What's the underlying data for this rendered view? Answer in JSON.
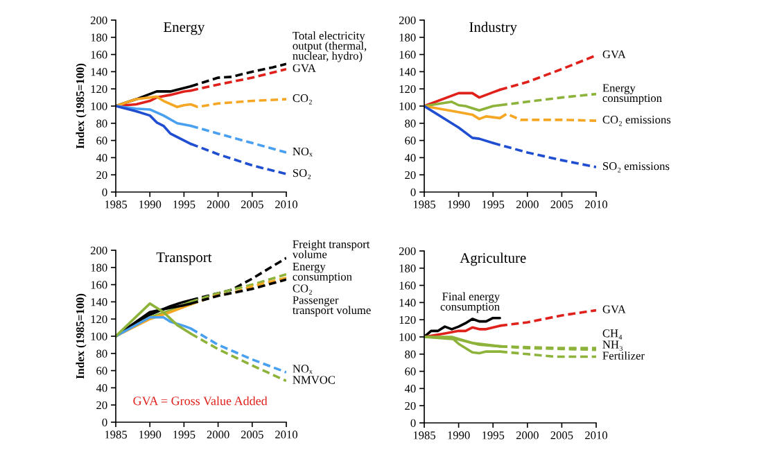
{
  "chart_data": [
    {
      "type": "line",
      "title": "Energy",
      "ylabel": "Index (1985=100)",
      "xlim": [
        1985,
        2010
      ],
      "xticks": [
        1985,
        1990,
        1995,
        2000,
        2005,
        2010
      ],
      "ylim": [
        0,
        200
      ],
      "yticks": [
        0,
        20,
        40,
        60,
        80,
        100,
        120,
        140,
        160,
        180,
        200
      ],
      "grid": false,
      "series": [
        {
          "color": "#000000",
          "line_style": "solid",
          "x": [
            1985,
            1988,
            1990,
            1991,
            1993,
            1995,
            1996
          ],
          "values": [
            100,
            108,
            114,
            117,
            117,
            121,
            123
          ]
        },
        {
          "name": "Total electricity\noutput (thermal,\nnuclear, hydro)",
          "color": "#000000",
          "line_style": "dashed",
          "x": [
            1996,
            2000,
            2002,
            2005,
            2008,
            2010
          ],
          "values": [
            123,
            133,
            134,
            140,
            145,
            149
          ]
        },
        {
          "color": "#e0201b",
          "line_style": "solid",
          "x": [
            1985,
            1988,
            1990,
            1991,
            1993,
            1995,
            1996
          ],
          "values": [
            100,
            102,
            106,
            110,
            113,
            117,
            118
          ]
        },
        {
          "name": "GVA",
          "color": "#e0201b",
          "line_style": "dashed",
          "x": [
            1996,
            2000,
            2005,
            2010
          ],
          "values": [
            118,
            125,
            133,
            143
          ]
        },
        {
          "color": "#f5a623",
          "line_style": "solid",
          "x": [
            1985,
            1988,
            1990,
            1991,
            1992,
            1994,
            1995,
            1996
          ],
          "values": [
            100,
            108,
            110,
            111,
            106,
            99,
            101,
            102
          ]
        },
        {
          "name": "CO₂",
          "color": "#f5a623",
          "line_style": "dashed",
          "x": [
            1996,
            1997,
            2000,
            2005,
            2010
          ],
          "values": [
            102,
            99,
            103,
            106,
            108
          ]
        },
        {
          "color": "#4aa0f0",
          "line_style": "solid",
          "x": [
            1985,
            1988,
            1990,
            1992,
            1994,
            1996
          ],
          "values": [
            100,
            97,
            96,
            89,
            80,
            77
          ]
        },
        {
          "name": "NOₓ",
          "color": "#4aa0f0",
          "line_style": "dashed",
          "x": [
            1996,
            2000,
            2005,
            2010
          ],
          "values": [
            77,
            68,
            57,
            46
          ]
        },
        {
          "color": "#1f4fd0",
          "line_style": "solid",
          "x": [
            1985,
            1988,
            1990,
            1991,
            1992,
            1993,
            1995,
            1996
          ],
          "values": [
            100,
            94,
            89,
            81,
            77,
            68,
            60,
            56
          ]
        },
        {
          "name": "SO₂",
          "color": "#1f4fd0",
          "line_style": "dashed",
          "x": [
            1996,
            2000,
            2005,
            2010
          ],
          "values": [
            56,
            44,
            31,
            21
          ]
        }
      ]
    },
    {
      "type": "line",
      "title": "Industry",
      "xlim": [
        1985,
        2010
      ],
      "xticks": [
        1985,
        1990,
        1995,
        2000,
        2005,
        2010
      ],
      "ylim": [
        0,
        200
      ],
      "yticks": [
        0,
        20,
        40,
        60,
        80,
        100,
        120,
        140,
        160,
        180,
        200
      ],
      "grid": false,
      "series": [
        {
          "color": "#e0201b",
          "line_style": "solid",
          "x": [
            1985,
            1990,
            1992,
            1993,
            1995,
            1996
          ],
          "values": [
            100,
            115,
            115,
            110,
            116,
            119
          ]
        },
        {
          "name": "GVA",
          "color": "#e0201b",
          "line_style": "dashed",
          "x": [
            1996,
            2000,
            2005,
            2010
          ],
          "values": [
            119,
            128,
            143,
            159
          ]
        },
        {
          "color": "#8db33a",
          "line_style": "solid",
          "x": [
            1985,
            1989,
            1990,
            1991,
            1993,
            1995,
            1996
          ],
          "values": [
            100,
            105,
            101,
            100,
            95,
            100,
            101
          ]
        },
        {
          "name": "Energy\nconsumption",
          "color": "#8db33a",
          "line_style": "dashed",
          "x": [
            1996,
            2000,
            2005,
            2010
          ],
          "values": [
            101,
            105,
            110,
            114
          ]
        },
        {
          "color": "#f5a623",
          "line_style": "solid",
          "x": [
            1985,
            1990,
            1992,
            1993,
            1994,
            1996
          ],
          "values": [
            100,
            93,
            90,
            85,
            88,
            86
          ]
        },
        {
          "name": "CO₂ emissions",
          "color": "#f5a623",
          "line_style": "dashed",
          "x": [
            1996,
            1997,
            1999,
            2005,
            2010
          ],
          "values": [
            86,
            91,
            84,
            84,
            83
          ]
        },
        {
          "color": "#1f4fd0",
          "line_style": "solid",
          "x": [
            1985,
            1990,
            1992,
            1993,
            1995
          ],
          "values": [
            100,
            75,
            63,
            62,
            57
          ]
        },
        {
          "name": "SO₂ emissions",
          "color": "#1f4fd0",
          "line_style": "dashed",
          "x": [
            1995,
            2000,
            2005,
            2010
          ],
          "values": [
            57,
            46,
            37,
            29
          ]
        }
      ]
    },
    {
      "type": "line",
      "title": "Transport",
      "ylabel": "Index (1985=100)",
      "xlim": [
        1985,
        2010
      ],
      "xticks": [
        1985,
        1990,
        1995,
        2000,
        2005,
        2010
      ],
      "ylim": [
        0,
        200
      ],
      "yticks": [
        0,
        20,
        40,
        60,
        80,
        100,
        120,
        140,
        160,
        180,
        200
      ],
      "grid": false,
      "annotations": [
        "GVA = Gross Value Added"
      ],
      "series": [
        {
          "color": "#000000",
          "line_style": "solid",
          "x": [
            1985,
            1990,
            1993,
            1995,
            1996
          ],
          "values": [
            100,
            125,
            135,
            140,
            142
          ]
        },
        {
          "name": "Freight transport\nvolume",
          "color": "#000000",
          "line_style": "dashed",
          "x": [
            1996,
            2000,
            2002,
            2005,
            2010
          ],
          "values": [
            142,
            150,
            154,
            167,
            191
          ]
        },
        {
          "color": "#8db33a",
          "line_style": "solid",
          "x": [
            1985,
            1990,
            1993,
            1995,
            1996
          ],
          "values": [
            100,
            122,
            130,
            137,
            140
          ]
        },
        {
          "name": "Energy\nconsumption",
          "color": "#8db33a",
          "line_style": "dashed",
          "x": [
            1996,
            2000,
            2005,
            2010
          ],
          "values": [
            140,
            150,
            160,
            172
          ]
        },
        {
          "color": "#f5a623",
          "line_style": "solid",
          "x": [
            1985,
            1990,
            1993,
            1995,
            1996
          ],
          "values": [
            100,
            120,
            128,
            134,
            137
          ]
        },
        {
          "name": "CO₂",
          "color": "#f5a623",
          "line_style": "dashed",
          "x": [
            1996,
            2000,
            2002,
            2005,
            2010
          ],
          "values": [
            137,
            148,
            150,
            158,
            168
          ]
        },
        {
          "color": "#000000",
          "line_style": "solid",
          "x": [
            1985,
            1990,
            1993,
            1995,
            1996
          ],
          "values": [
            100,
            128,
            133,
            136,
            138
          ]
        },
        {
          "name": "Passenger\ntransport volume",
          "color": "#000000",
          "line_style": "dashed",
          "x": [
            1996,
            2000,
            2005,
            2010
          ],
          "values": [
            138,
            147,
            155,
            166
          ]
        },
        {
          "color": "#4aa0f0",
          "line_style": "solid",
          "x": [
            1985,
            1990,
            1992,
            1993,
            1995,
            1996
          ],
          "values": [
            100,
            122,
            122,
            117,
            112,
            109
          ]
        },
        {
          "name": "NOₓ",
          "color": "#4aa0f0",
          "line_style": "dashed",
          "x": [
            1996,
            2000,
            2005,
            2010
          ],
          "values": [
            109,
            90,
            73,
            58
          ]
        },
        {
          "color": "#8db33a",
          "line_style": "solid",
          "x": [
            1985,
            1990,
            1992,
            1994,
            1996
          ],
          "values": [
            100,
            138,
            128,
            113,
            103
          ]
        },
        {
          "name": "NMVOC",
          "color": "#8db33a",
          "line_style": "dashed",
          "x": [
            1996,
            2000,
            2005,
            2010
          ],
          "values": [
            103,
            85,
            66,
            48
          ]
        }
      ]
    },
    {
      "type": "line",
      "title": "Agriculture",
      "xlim": [
        1985,
        2010
      ],
      "xticks": [
        1985,
        1990,
        1995,
        2000,
        2005,
        2010
      ],
      "ylim": [
        0,
        200
      ],
      "yticks": [
        0,
        20,
        40,
        60,
        80,
        100,
        120,
        140,
        160,
        180,
        200
      ],
      "grid": false,
      "series": [
        {
          "name": "Final energy\nconsumption",
          "color": "#000000",
          "line_style": "solid",
          "x": [
            1985,
            1986,
            1987,
            1988,
            1989,
            1990,
            1991,
            1992,
            1993,
            1994,
            1995,
            1996
          ],
          "values": [
            100,
            107,
            107,
            112,
            109,
            112,
            116,
            121,
            118,
            118,
            122,
            122
          ]
        },
        {
          "color": "#e0201b",
          "line_style": "solid",
          "x": [
            1985,
            1988,
            1990,
            1991,
            1992,
            1993,
            1994,
            1996
          ],
          "values": [
            100,
            104,
            107,
            107,
            111,
            109,
            109,
            113
          ]
        },
        {
          "name": "GVA",
          "color": "#e0201b",
          "line_style": "dashed",
          "x": [
            1996,
            2000,
            2005,
            2010
          ],
          "values": [
            113,
            117,
            125,
            131
          ]
        },
        {
          "color": "#8db33a",
          "line_style": "solid",
          "x": [
            1985,
            1989,
            1992,
            1995,
            1996
          ],
          "values": [
            100,
            100,
            93,
            90,
            89
          ]
        },
        {
          "name": "CH₄",
          "color": "#8db33a",
          "line_style": "dashed",
          "x": [
            1996,
            2000,
            2005,
            2010
          ],
          "values": [
            89,
            88,
            87,
            87
          ]
        },
        {
          "color": "#8db33a",
          "line_style": "solid",
          "x": [
            1985,
            1990,
            1993,
            1996
          ],
          "values": [
            100,
            97,
            91,
            89
          ]
        },
        {
          "name": "NH₃",
          "color": "#8db33a",
          "line_style": "dashed",
          "x": [
            1996,
            2000,
            2005,
            2010
          ],
          "values": [
            89,
            87,
            86,
            85
          ]
        },
        {
          "color": "#8db33a",
          "line_style": "solid",
          "x": [
            1985,
            1989,
            1990,
            1992,
            1993,
            1994,
            1996
          ],
          "values": [
            100,
            99,
            92,
            82,
            81,
            83,
            83
          ]
        },
        {
          "name": "Fertilizer",
          "color": "#8db33a",
          "line_style": "dashed",
          "x": [
            1996,
            2000,
            2004,
            2010
          ],
          "values": [
            83,
            80,
            77,
            77
          ]
        }
      ]
    }
  ]
}
